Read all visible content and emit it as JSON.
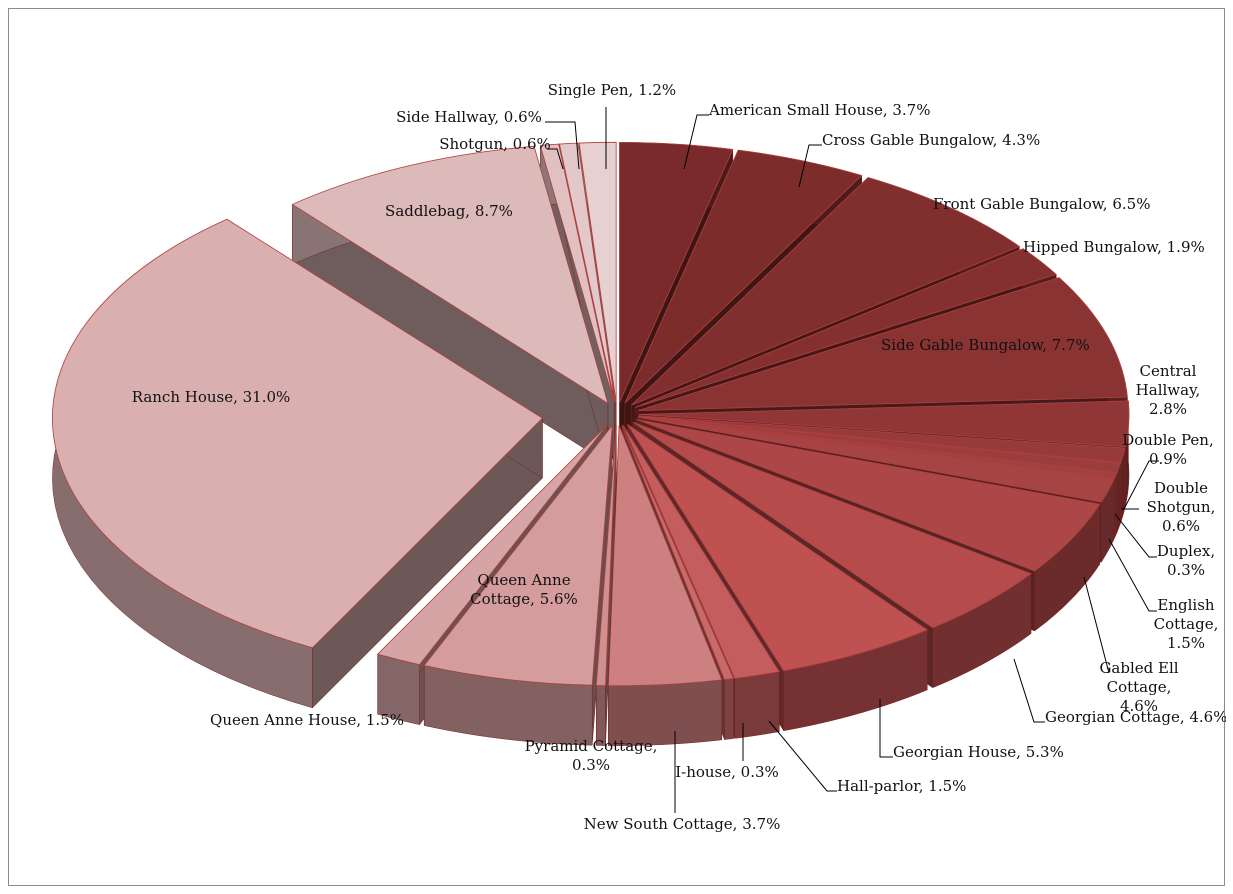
{
  "chart_data": {
    "type": "pie",
    "style": "3d-exploded",
    "title": "",
    "legend": "none",
    "slices": [
      {
        "name": "American Small House",
        "value": 3.7,
        "label": "American Small House, 3.7%",
        "color": "#7a2a2a"
      },
      {
        "name": "Cross Gable Bungalow",
        "value": 4.3,
        "label": "Cross Gable Bungalow, 4.3%",
        "color": "#7d2c2c"
      },
      {
        "name": "Front Gable Bungalow",
        "value": 6.5,
        "label": "Front Gable Bungalow, 6.5%",
        "color": "#812e2e"
      },
      {
        "name": "Hipped Bungalow",
        "value": 1.9,
        "label": "Hipped Bungalow, 1.9%",
        "color": "#853030"
      },
      {
        "name": "Side Gable Bungalow",
        "value": 7.7,
        "label": "Side Gable Bungalow, 7.7%",
        "color": "#8a3333"
      },
      {
        "name": "Central Hallway",
        "value": 2.8,
        "label": "Central Hallway, 2.8%",
        "color": "#903636"
      },
      {
        "name": "Double Pen",
        "value": 0.9,
        "label": "Double Pen, 0.9%",
        "color": "#963a3a"
      },
      {
        "name": "Double Shotgun",
        "value": 0.6,
        "label": "Double Shotgun, 0.6%",
        "color": "#9b3d3d"
      },
      {
        "name": "Duplex",
        "value": 0.3,
        "label": "Duplex, 0.3%",
        "color": "#a04040"
      },
      {
        "name": "English Cottage",
        "value": 1.5,
        "label": "English Cottage, 1.5%",
        "color": "#a64343"
      },
      {
        "name": "Gabled Ell Cottage",
        "value": 4.6,
        "label": "Gabled Ell Cottage, 4.6%",
        "color": "#ad4646"
      },
      {
        "name": "Georgian Cottage",
        "value": 4.6,
        "label": "Georgian Cottage, 4.6%",
        "color": "#b64b4b"
      },
      {
        "name": "Georgian House",
        "value": 5.3,
        "label": "Georgian House, 5.3%",
        "color": "#bf5151"
      },
      {
        "name": "Hall-parlor",
        "value": 1.5,
        "label": "Hall-parlor, 1.5%",
        "color": "#c45d5d"
      },
      {
        "name": "I-house",
        "value": 0.3,
        "label": "I-house, 0.3%",
        "color": "#c96a6a"
      },
      {
        "name": "New South Cottage",
        "value": 3.7,
        "label": "New South Cottage, 3.7%",
        "color": "#cd8080"
      },
      {
        "name": "Pyramid Cottage",
        "value": 0.3,
        "label": "Pyramid Cottage, 0.3%",
        "color": "#d09090"
      },
      {
        "name": "Queen Anne Cottage",
        "value": 5.6,
        "label": "Queen Anne Cottage, 5.6%",
        "color": "#d49c9c"
      },
      {
        "name": "Queen Anne House",
        "value": 1.5,
        "label": "Queen Anne House, 1.5%",
        "color": "#d6a4a4"
      },
      {
        "name": "Ranch House",
        "value": 31.0,
        "label": "Ranch House, 31.0%",
        "color": "#d9afaf"
      },
      {
        "name": "Saddlebag",
        "value": 8.7,
        "label": "Saddlebag, 8.7%",
        "color": "#ddbaba"
      },
      {
        "name": "Shotgun",
        "value": 0.6,
        "label": "Shotgun, 0.6%",
        "color": "#e0c0c0"
      },
      {
        "name": "Side Hallway",
        "value": 0.6,
        "label": "Side Hallway, 0.6%",
        "color": "#e2c8c8"
      },
      {
        "name": "Single Pen",
        "value": 1.2,
        "label": "Single Pen, 1.2%",
        "color": "#e6d0d0"
      }
    ]
  }
}
